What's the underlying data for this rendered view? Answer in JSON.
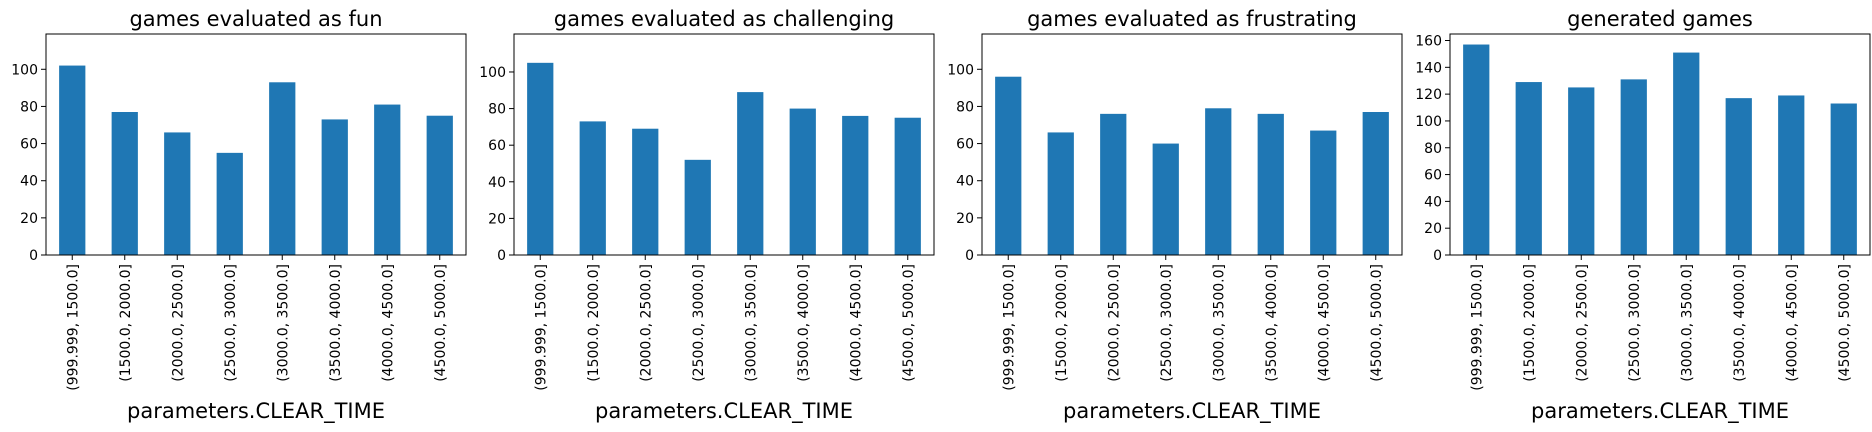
{
  "figure": {
    "bar_color": "#1f77b4",
    "background": "#ffffff"
  },
  "chart_data": [
    {
      "type": "bar",
      "title": "games evaluated as fun",
      "xlabel": "parameters.CLEAR_TIME",
      "ylabel": "",
      "categories": [
        "(999.999, 1500.0]",
        "(1500.0, 2000.0]",
        "(2000.0, 2500.0]",
        "(2500.0, 3000.0]",
        "(3000.0, 3500.0]",
        "(3500.0, 4000.0]",
        "(4000.0, 4500.0]",
        "(4500.0, 5000.0]"
      ],
      "values": [
        102,
        77,
        66,
        55,
        93,
        73,
        81,
        75
      ],
      "ylim": [
        0,
        119
      ],
      "yticks": [
        0,
        20,
        40,
        60,
        80,
        100
      ]
    },
    {
      "type": "bar",
      "title": "games evaluated as challenging",
      "xlabel": "parameters.CLEAR_TIME",
      "ylabel": "",
      "categories": [
        "(999.999, 1500.0]",
        "(1500.0, 2000.0]",
        "(2000.0, 2500.0]",
        "(2500.0, 3000.0]",
        "(3000.0, 3500.0]",
        "(3500.0, 4000.0]",
        "(4000.0, 4500.0]",
        "(4500.0, 5000.0]"
      ],
      "values": [
        105,
        73,
        69,
        52,
        89,
        80,
        76,
        75
      ],
      "ylim": [
        0,
        120.75
      ],
      "yticks": [
        0,
        20,
        40,
        60,
        80,
        100
      ]
    },
    {
      "type": "bar",
      "title": "games evaluated as frustrating",
      "xlabel": "parameters.CLEAR_TIME",
      "ylabel": "",
      "categories": [
        "(999.999, 1500.0]",
        "(1500.0, 2000.0]",
        "(2000.0, 2500.0]",
        "(2500.0, 3000.0]",
        "(3000.0, 3500.0]",
        "(3500.0, 4000.0]",
        "(4000.0, 4500.0]",
        "(4500.0, 5000.0]"
      ],
      "values": [
        96,
        66,
        76,
        60,
        79,
        76,
        67,
        77
      ],
      "ylim": [
        0,
        119
      ],
      "yticks": [
        0,
        20,
        40,
        60,
        80,
        100
      ]
    },
    {
      "type": "bar",
      "title": "generated games",
      "xlabel": "parameters.CLEAR_TIME",
      "ylabel": "",
      "categories": [
        "(999.999, 1500.0]",
        "(1500.0, 2000.0]",
        "(2000.0, 2500.0]",
        "(2500.0, 3000.0]",
        "(3000.0, 3500.0]",
        "(3500.0, 4000.0]",
        "(4000.0, 4500.0]",
        "(4500.0, 5000.0]"
      ],
      "values": [
        157,
        129,
        125,
        131,
        151,
        117,
        119,
        113
      ],
      "ylim": [
        0,
        164.85
      ],
      "yticks": [
        0,
        20,
        40,
        60,
        80,
        100,
        120,
        140,
        160
      ]
    }
  ]
}
